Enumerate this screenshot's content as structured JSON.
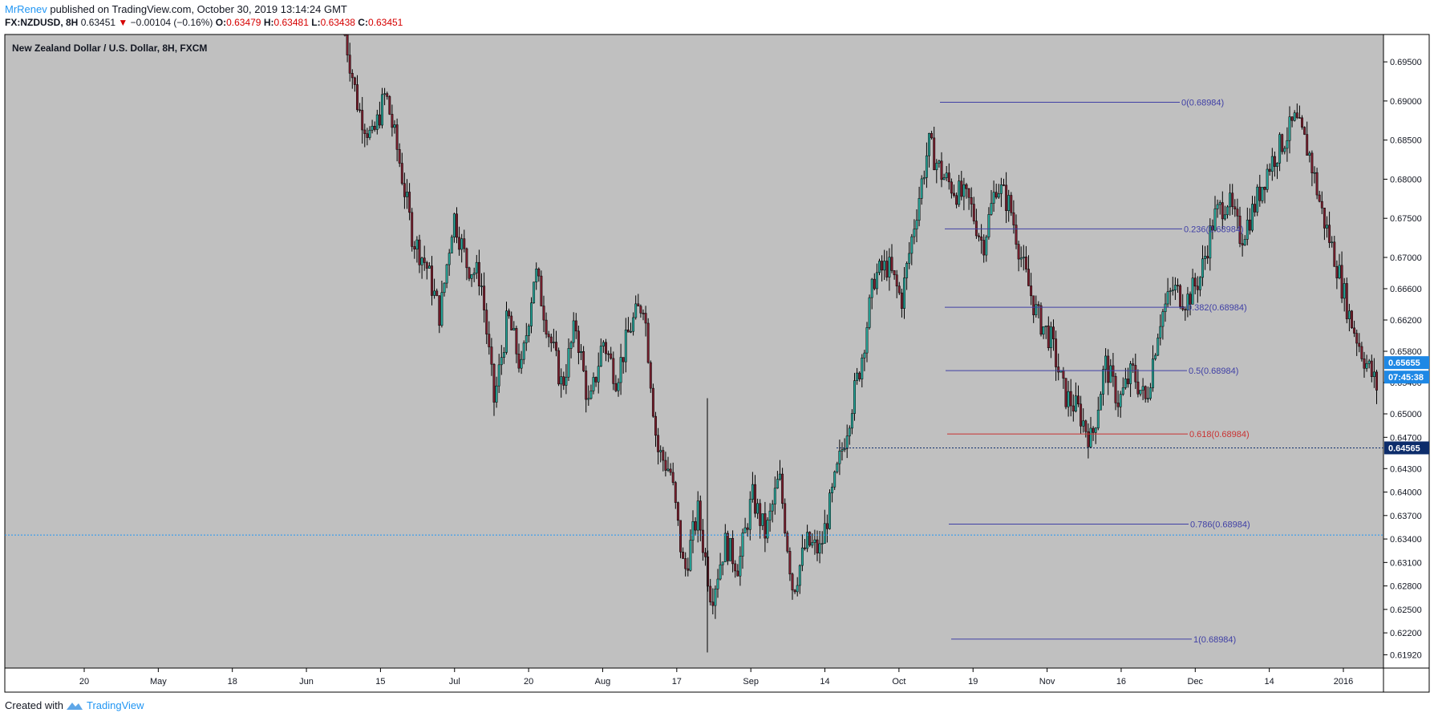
{
  "header": {
    "publisher": "MrRenev",
    "published_text": " published on TradingView.com, October 30, 2019 13:14:24 GMT",
    "symbol": "FX:NZDUSD, 8H",
    "last": "0.63451",
    "change": "−0.00104 (−0.16%)",
    "o_label": "O:",
    "o_value": "0.63479",
    "h_label": "H:",
    "h_value": "0.63481",
    "l_label": "L:",
    "l_value": "0.63438",
    "c_label": "C:",
    "c_value": "0.63451"
  },
  "footer": {
    "created_text": "Created with",
    "brand": "TradingView"
  },
  "colors": {
    "plot_bg": "#c0c0c0",
    "bull": "#26a69a",
    "bear": "#7b1f2e",
    "fib_blue": "#3f3fa5",
    "fib_red": "#c93232",
    "axis_badge_blue": "#1e88e5",
    "axis_badge_dark": "#0d2d6b"
  },
  "chart_data": {
    "type": "candlestick",
    "title": "New Zealand Dollar / U.S. Dollar, 8H, FXCM",
    "ylim": [
      0.6175,
      0.6985
    ],
    "y_ticks": [
      "0.69500",
      "0.69000",
      "0.68500",
      "0.68000",
      "0.67500",
      "0.67000",
      "0.66600",
      "0.66200",
      "0.65800",
      "0.65400",
      "0.65000",
      "0.64700",
      "0.64300",
      "0.64000",
      "0.63700",
      "0.63400",
      "0.63100",
      "0.62800",
      "0.62500",
      "0.62200",
      "0.61920"
    ],
    "x_ticks": [
      "20",
      "May",
      "18",
      "Jun",
      "15",
      "Jul",
      "20",
      "Aug",
      "17",
      "Sep",
      "14",
      "Oct",
      "19",
      "Nov",
      "16",
      "Dec",
      "14",
      "2016"
    ],
    "price_path": [
      [
        0.699,
        0.698
      ],
      [
        0.69,
        0.688
      ],
      [
        0.686,
        0.684
      ],
      [
        0.692,
        0.69
      ],
      [
        0.683,
        0.682
      ],
      [
        0.673,
        0.672
      ],
      [
        0.67,
        0.668
      ],
      [
        0.663,
        0.662
      ],
      [
        0.675,
        0.676
      ],
      [
        0.67,
        0.668
      ],
      [
        0.668,
        0.667
      ],
      [
        0.652,
        0.651
      ],
      [
        0.662,
        0.663
      ],
      [
        0.656,
        0.655
      ],
      [
        0.668,
        0.669
      ],
      [
        0.661,
        0.66
      ],
      [
        0.654,
        0.653
      ],
      [
        0.662,
        0.661
      ],
      [
        0.651,
        0.65
      ],
      [
        0.66,
        0.659
      ],
      [
        0.654,
        0.655
      ],
      [
        0.66,
        0.662
      ],
      [
        0.664,
        0.665
      ],
      [
        0.646,
        0.645
      ],
      [
        0.643,
        0.642
      ],
      [
        0.63,
        0.629
      ],
      [
        0.637,
        0.638
      ],
      [
        0.627,
        0.626
      ],
      [
        0.633,
        0.634
      ],
      [
        0.63,
        0.631
      ],
      [
        0.639,
        0.64
      ],
      [
        0.634,
        0.635
      ],
      [
        0.641,
        0.643
      ],
      [
        0.628,
        0.627
      ],
      [
        0.633,
        0.634
      ],
      [
        0.632,
        0.633
      ],
      [
        0.64,
        0.641
      ],
      [
        0.648,
        0.649
      ],
      [
        0.656,
        0.657
      ],
      [
        0.667,
        0.668
      ],
      [
        0.668,
        0.67
      ],
      [
        0.664,
        0.665
      ],
      [
        0.674,
        0.676
      ],
      [
        0.684,
        0.685
      ],
      [
        0.68,
        0.681
      ],
      [
        0.678,
        0.679
      ],
      [
        0.676,
        0.678
      ],
      [
        0.672,
        0.671
      ],
      [
        0.679,
        0.68
      ],
      [
        0.676,
        0.677
      ],
      [
        0.669,
        0.668
      ],
      [
        0.663,
        0.662
      ],
      [
        0.66,
        0.659
      ],
      [
        0.653,
        0.652
      ],
      [
        0.65,
        0.651
      ],
      [
        0.647,
        0.646
      ],
      [
        0.656,
        0.657
      ],
      [
        0.652,
        0.651
      ],
      [
        0.656,
        0.655
      ],
      [
        0.651,
        0.652
      ],
      [
        0.661,
        0.663
      ],
      [
        0.665,
        0.667
      ],
      [
        0.664,
        0.665
      ],
      [
        0.668,
        0.667
      ],
      [
        0.674,
        0.676
      ],
      [
        0.677,
        0.678
      ],
      [
        0.672,
        0.673
      ],
      [
        0.676,
        0.677
      ],
      [
        0.681,
        0.682
      ],
      [
        0.684,
        0.685
      ],
      [
        0.687,
        0.688
      ],
      [
        0.684,
        0.683
      ],
      [
        0.676,
        0.675
      ],
      [
        0.67,
        0.669
      ],
      [
        0.663,
        0.662
      ],
      [
        0.658,
        0.657
      ],
      [
        0.654,
        0.653
      ]
    ],
    "fib_levels": [
      {
        "label": "0(0.68984)",
        "price": 0.68984
      },
      {
        "label": "0.236(0.68984)",
        "price": 0.67365
      },
      {
        "label": "0.382(0.68984)",
        "price": 0.66363
      },
      {
        "label": "0.5(0.68984)",
        "price": 0.65553
      },
      {
        "label": "0.618(0.68984)",
        "price": 0.64743
      },
      {
        "label": "0.786(0.68984)",
        "price": 0.6359
      },
      {
        "label": "1(0.68984)",
        "price": 0.62121
      }
    ],
    "horizontal_lines": [
      0.64565,
      0.63451
    ],
    "price_badges": [
      {
        "value": "0.65655",
        "price": 0.65655,
        "style": "blue"
      },
      {
        "value": "07:45:38",
        "price": 0.6547,
        "style": "blue"
      },
      {
        "value": "0.64565",
        "price": 0.64565,
        "style": "dark"
      }
    ]
  }
}
